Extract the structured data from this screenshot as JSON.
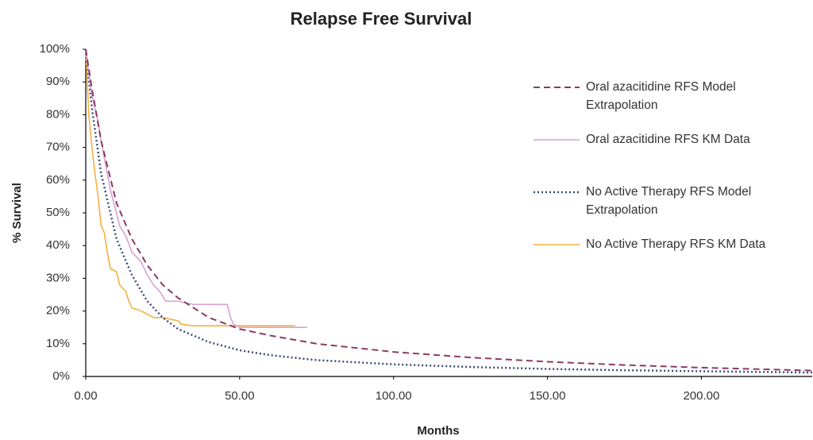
{
  "chart_data": {
    "type": "line",
    "title": "Relapse Free Survival",
    "x_label": "Months",
    "y_label": "% Survival",
    "xlim": [
      0,
      236
    ],
    "ylim": [
      0,
      100
    ],
    "xticks": [
      {
        "value": 0,
        "label": "0.00"
      },
      {
        "value": 50,
        "label": "50.00"
      },
      {
        "value": 100,
        "label": "100.00"
      },
      {
        "value": 150,
        "label": "150.00"
      },
      {
        "value": 200,
        "label": "200.00"
      }
    ],
    "yticks": [
      {
        "value": 0,
        "label": "0%"
      },
      {
        "value": 10,
        "label": "10%"
      },
      {
        "value": 20,
        "label": "20%"
      },
      {
        "value": 30,
        "label": "30%"
      },
      {
        "value": 40,
        "label": "40%"
      },
      {
        "value": 50,
        "label": "50%"
      },
      {
        "value": 60,
        "label": "60%"
      },
      {
        "value": 70,
        "label": "70%"
      },
      {
        "value": 80,
        "label": "80%"
      },
      {
        "value": 90,
        "label": "90%"
      },
      {
        "value": 100,
        "label": "100%"
      }
    ],
    "grid": false,
    "legend": "right",
    "series": [
      {
        "name": "Oral azacitidine RFS Model Extrapolation",
        "color": "#8b3a62",
        "style": "dashed",
        "x": [
          0,
          2,
          5,
          10,
          15,
          20,
          25,
          30,
          40,
          50,
          60,
          75,
          100,
          125,
          150,
          175,
          200,
          236
        ],
        "values": [
          100,
          88,
          72,
          53,
          42,
          34,
          28,
          24,
          18,
          14.5,
          12.5,
          10,
          7.5,
          5.8,
          4.5,
          3.5,
          2.7,
          1.8
        ]
      },
      {
        "name": "Oral azacitidine RFS KM Data",
        "color": "#d6a2d2",
        "style": "solid",
        "x": [
          0,
          1,
          2,
          4,
          5,
          6,
          7,
          8,
          10,
          11,
          13,
          15,
          18,
          20,
          22,
          24,
          26,
          30,
          35,
          40,
          46,
          47,
          48,
          50,
          60,
          72
        ],
        "values": [
          100,
          93,
          86,
          78,
          72,
          67,
          62,
          57,
          50,
          46,
          43,
          38,
          35,
          31,
          28,
          26,
          23,
          23,
          22,
          22,
          22,
          18,
          16,
          15,
          15,
          15
        ]
      },
      {
        "name": "No Active Therapy RFS Model Extrapolation",
        "color": "#3b4a7a",
        "style": "dotted",
        "x": [
          0,
          2,
          5,
          10,
          15,
          20,
          25,
          30,
          40,
          50,
          60,
          75,
          100,
          125,
          150,
          175,
          200,
          236
        ],
        "values": [
          100,
          82,
          62,
          42,
          31,
          23,
          18,
          14.5,
          10.5,
          8,
          6.5,
          5,
          3.7,
          2.9,
          2.3,
          1.9,
          1.6,
          1.2
        ]
      },
      {
        "name": "No Active Therapy RFS KM Data",
        "color": "#f5b041",
        "style": "solid",
        "x": [
          0,
          1,
          2,
          3,
          4,
          5,
          6,
          7,
          8,
          10,
          11,
          13,
          14,
          15,
          18,
          20,
          22,
          25,
          30,
          31,
          35,
          50,
          68
        ],
        "values": [
          100,
          80,
          70,
          62,
          55,
          46,
          44,
          38,
          33,
          32,
          28,
          26,
          23,
          21,
          20,
          19,
          18,
          18,
          17,
          16,
          15.5,
          15.5,
          15.5
        ]
      }
    ]
  }
}
